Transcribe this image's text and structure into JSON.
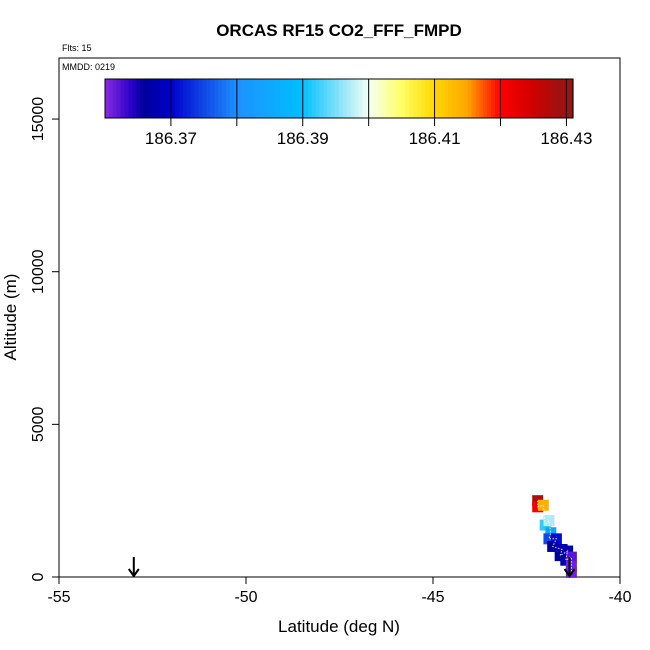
{
  "chart_data": {
    "type": "scatter",
    "title": "ORCAS RF15 CO2_FFF_FMPD",
    "flights_label": "Flts: 15",
    "date_label": "MMDD: 0219",
    "xlabel": "Latitude (deg N)",
    "ylabel": "Altitude (m)",
    "xlim": [
      -55,
      -40
    ],
    "ylim": [
      0,
      17000
    ],
    "x_ticks": [
      -55,
      -50,
      -45,
      -40
    ],
    "y_ticks": [
      0,
      5000,
      10000,
      15000
    ],
    "colorbar": {
      "range": [
        186.36,
        186.431
      ],
      "tick_values": [
        186.37,
        186.39,
        186.41,
        186.43
      ],
      "tick_labels": [
        "186.37",
        "186.39",
        "186.41",
        "186.43"
      ],
      "stops": [
        {
          "value": 186.36,
          "color": "#8a2be2"
        },
        {
          "value": 186.364,
          "color": "#2a00c8"
        },
        {
          "value": 186.366,
          "color": "#00009a"
        },
        {
          "value": 186.37,
          "color": "#0000cd"
        },
        {
          "value": 186.38,
          "color": "#1e90ff"
        },
        {
          "value": 186.39,
          "color": "#00bfff"
        },
        {
          "value": 186.4,
          "color": "#f5fff5"
        },
        {
          "value": 186.405,
          "color": "#ffff66"
        },
        {
          "value": 186.41,
          "color": "#ffd700"
        },
        {
          "value": 186.415,
          "color": "#ffa500"
        },
        {
          "value": 186.42,
          "color": "#ff0000"
        },
        {
          "value": 186.425,
          "color": "#cd0000"
        },
        {
          "value": 186.431,
          "color": "#8b1a1a"
        }
      ]
    },
    "points": [
      {
        "lat": -42.2,
        "alt": 2500,
        "value": 186.428
      },
      {
        "lat": -42.2,
        "alt": 2300,
        "value": 186.421
      },
      {
        "lat": -42.05,
        "alt": 2350,
        "value": 186.414
      },
      {
        "lat": -42.0,
        "alt": 1700,
        "value": 186.392
      },
      {
        "lat": -41.9,
        "alt": 1850,
        "value": 186.397
      },
      {
        "lat": -41.85,
        "alt": 1450,
        "value": 186.384
      },
      {
        "lat": -41.9,
        "alt": 1250,
        "value": 186.375
      },
      {
        "lat": -41.7,
        "alt": 1250,
        "value": 186.371
      },
      {
        "lat": -41.8,
        "alt": 1000,
        "value": 186.366
      },
      {
        "lat": -41.55,
        "alt": 900,
        "value": 186.368
      },
      {
        "lat": -41.6,
        "alt": 700,
        "value": 186.366
      },
      {
        "lat": -41.4,
        "alt": 850,
        "value": 186.368
      },
      {
        "lat": -41.45,
        "alt": 550,
        "value": 186.367
      },
      {
        "lat": -41.3,
        "alt": 650,
        "value": 186.362
      },
      {
        "lat": -41.3,
        "alt": 350,
        "value": 186.361
      },
      {
        "lat": -41.3,
        "alt": 150,
        "value": 186.361
      }
    ],
    "arrows": [
      {
        "lat": -53.0,
        "label": "takeoff/landing marker"
      },
      {
        "lat": -41.35,
        "label": "takeoff/landing marker"
      }
    ]
  }
}
